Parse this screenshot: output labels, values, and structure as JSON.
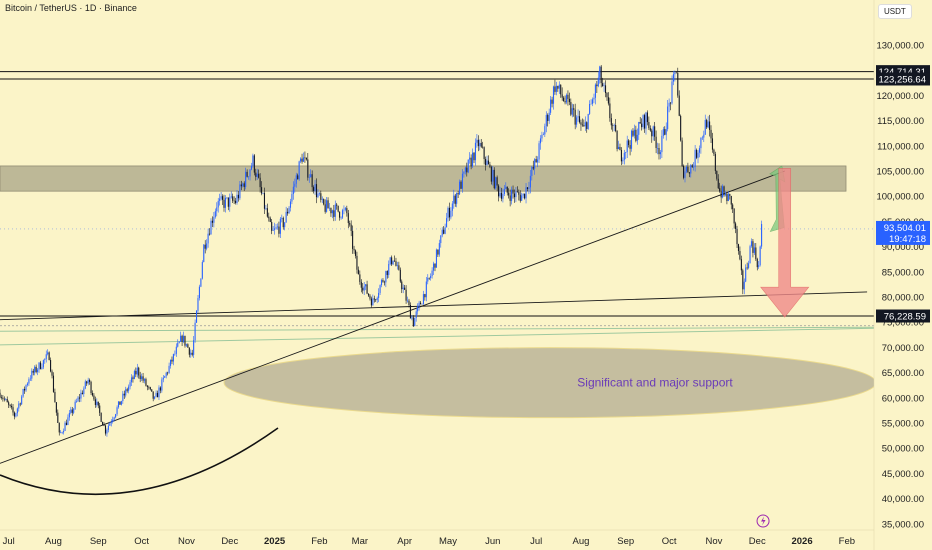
{
  "header": {
    "symbol_title": "Bitcoin / TetherUS · 1D · Binance",
    "currency": "USDT"
  },
  "chart_data": {
    "type": "candlestick",
    "title": "Bitcoin / TetherUS · 1D · Binance",
    "y_axis_ticks": [
      130000,
      125000,
      120000,
      115000,
      110000,
      105000,
      100000,
      95000,
      90000,
      85000,
      80000,
      75000,
      70000,
      65000,
      60000,
      55000,
      50000,
      45000,
      40000,
      35000
    ],
    "y_tick_labels": [
      "130,000.00",
      "125,000.00",
      "120,000.00",
      "115,000.00",
      "110,000.00",
      "105,000.00",
      "100,000.00",
      "95,000.00",
      "90,000.00",
      "85,000.00",
      "80,000.00",
      "75,000.00",
      "70,000.00",
      "65,000.00",
      "60,000.00",
      "55,000.00",
      "50,000.00",
      "45,000.00",
      "40,000.00",
      "35,000.00"
    ],
    "ylim": [
      34000,
      136000
    ],
    "x_axis_labels": [
      {
        "label": "Jul",
        "date": "2024-07-01"
      },
      {
        "label": "Aug",
        "date": "2024-08-01"
      },
      {
        "label": "Sep",
        "date": "2024-09-01"
      },
      {
        "label": "Oct",
        "date": "2024-10-01"
      },
      {
        "label": "Nov",
        "date": "2024-11-01"
      },
      {
        "label": "Dec",
        "date": "2024-12-01"
      },
      {
        "label": "2025",
        "date": "2025-01-01",
        "bold": true
      },
      {
        "label": "Feb",
        "date": "2025-02-01"
      },
      {
        "label": "Mar",
        "date": "2025-03-01"
      },
      {
        "label": "Apr",
        "date": "2025-04-01"
      },
      {
        "label": "May",
        "date": "2025-05-01"
      },
      {
        "label": "Jun",
        "date": "2025-06-01"
      },
      {
        "label": "Jul",
        "date": "2025-07-01"
      },
      {
        "label": "Aug",
        "date": "2025-08-01"
      },
      {
        "label": "Sep",
        "date": "2025-09-01"
      },
      {
        "label": "Oct",
        "date": "2025-10-01"
      },
      {
        "label": "Nov",
        "date": "2025-11-01"
      },
      {
        "label": "Dec",
        "date": "2025-12-01"
      },
      {
        "label": "2026",
        "date": "2026-01-01",
        "bold": true
      },
      {
        "label": "Feb",
        "date": "2026-02-01"
      }
    ],
    "price_path": [
      {
        "date": "2024-06-25",
        "price": 61000
      },
      {
        "date": "2024-07-05",
        "price": 56500
      },
      {
        "date": "2024-07-15",
        "price": 64000
      },
      {
        "date": "2024-07-29",
        "price": 68500
      },
      {
        "date": "2024-08-05",
        "price": 52500
      },
      {
        "date": "2024-08-25",
        "price": 63500
      },
      {
        "date": "2024-09-06",
        "price": 53500
      },
      {
        "date": "2024-09-28",
        "price": 65500
      },
      {
        "date": "2024-10-10",
        "price": 59500
      },
      {
        "date": "2024-10-29",
        "price": 72000
      },
      {
        "date": "2024-11-05",
        "price": 68500
      },
      {
        "date": "2024-11-13",
        "price": 90000
      },
      {
        "date": "2024-11-22",
        "price": 98500
      },
      {
        "date": "2024-12-05",
        "price": 99000
      },
      {
        "date": "2024-12-17",
        "price": 107000
      },
      {
        "date": "2024-12-30",
        "price": 92500
      },
      {
        "date": "2025-01-08",
        "price": 95000
      },
      {
        "date": "2025-01-20",
        "price": 108000
      },
      {
        "date": "2025-02-03",
        "price": 98000
      },
      {
        "date": "2025-02-20",
        "price": 96500
      },
      {
        "date": "2025-02-28",
        "price": 84000
      },
      {
        "date": "2025-03-10",
        "price": 79000
      },
      {
        "date": "2025-03-24",
        "price": 88000
      },
      {
        "date": "2025-04-07",
        "price": 75000
      },
      {
        "date": "2025-04-20",
        "price": 85000
      },
      {
        "date": "2025-05-01",
        "price": 96500
      },
      {
        "date": "2025-05-22",
        "price": 110500
      },
      {
        "date": "2025-06-05",
        "price": 101000
      },
      {
        "date": "2025-06-22",
        "price": 100000
      },
      {
        "date": "2025-07-01",
        "price": 107000
      },
      {
        "date": "2025-07-14",
        "price": 122000
      },
      {
        "date": "2025-08-03",
        "price": 113000
      },
      {
        "date": "2025-08-14",
        "price": 124000
      },
      {
        "date": "2025-08-28",
        "price": 108000
      },
      {
        "date": "2025-09-15",
        "price": 115500
      },
      {
        "date": "2025-09-25",
        "price": 109000
      },
      {
        "date": "2025-10-06",
        "price": 125500
      },
      {
        "date": "2025-10-10",
        "price": 105000
      },
      {
        "date": "2025-10-17",
        "price": 106000
      },
      {
        "date": "2025-10-27",
        "price": 115000
      },
      {
        "date": "2025-11-05",
        "price": 101000
      },
      {
        "date": "2025-11-13",
        "price": 99000
      },
      {
        "date": "2025-11-21",
        "price": 82000
      },
      {
        "date": "2025-11-27",
        "price": 91000
      },
      {
        "date": "2025-12-02",
        "price": 86000
      },
      {
        "date": "2025-12-04",
        "price": 93504
      }
    ],
    "horizontal_lines": [
      {
        "price": 124714.31,
        "label": "124,714.31"
      },
      {
        "price": 123256.64,
        "label": "123,256.64"
      },
      {
        "price": 76228.59,
        "label": "76,228.59"
      }
    ],
    "current_price": {
      "value": 93504.01,
      "label": "93,504.01",
      "countdown": "19:47:18"
    },
    "resistance_zone": {
      "from": 101000,
      "to": 106000
    },
    "trendlines": [
      {
        "from": {
          "date": "2024-06-25",
          "price": 47000
        },
        "to": {
          "date": "2025-12-20",
          "price": 105000
        }
      },
      {
        "from": {
          "date": "2024-06-25",
          "price": 75500
        },
        "to": {
          "date": "2026-02-15",
          "price": 81000
        }
      }
    ],
    "support_ellipse": {
      "center_date": "2025-09-20",
      "center_price": 63000,
      "label": "Significant and major support"
    },
    "arrows": [
      {
        "direction": "up",
        "color": "#7ec87e",
        "from": {
          "date": "2025-12-10",
          "price": 93000
        },
        "to": {
          "date": "2025-12-18",
          "price": 106000
        }
      },
      {
        "direction": "down",
        "color": "#f08a8a",
        "from": {
          "date": "2025-12-20",
          "price": 105500
        },
        "to": {
          "date": "2025-12-20",
          "price": 76000
        }
      }
    ],
    "colors": {
      "background": "#fbf4c8",
      "candle_up": "#2962ff",
      "candle_down": "#131722",
      "zone": "#a9a587",
      "price_label": "#2962ff",
      "support_text": "#6a3bb8"
    }
  }
}
